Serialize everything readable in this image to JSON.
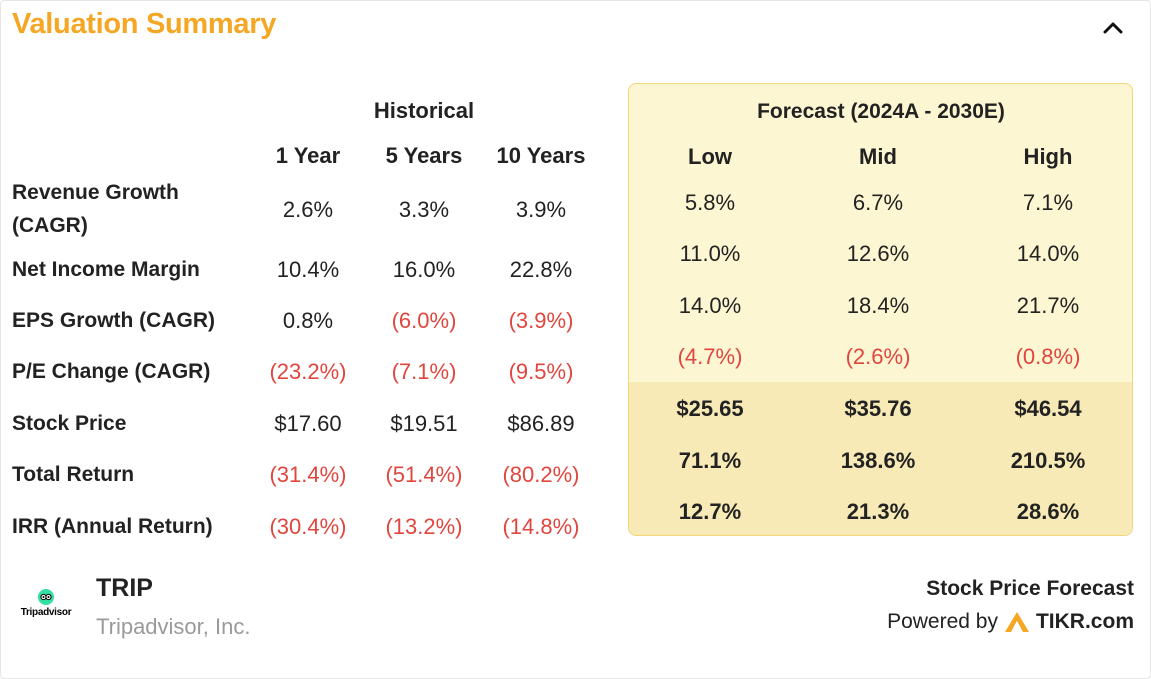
{
  "header": {
    "title": "Valuation Summary",
    "collapse_icon": "chevron-up-icon"
  },
  "historical": {
    "group_label": "Historical",
    "columns": [
      "1 Year",
      "5 Years",
      "10 Years"
    ]
  },
  "forecast": {
    "group_label": "Forecast (2024A - 2030E)",
    "columns": [
      "Low",
      "Mid",
      "High"
    ]
  },
  "rows": [
    {
      "label": "Revenue Growth (CAGR)",
      "label_line1": "Revenue Growth",
      "label_line2": "(CAGR)",
      "historical": [
        "2.6%",
        "3.3%",
        "3.9%"
      ],
      "forecast": [
        "5.8%",
        "6.7%",
        "7.1%"
      ]
    },
    {
      "label": "Net Income Margin",
      "historical": [
        "10.4%",
        "16.0%",
        "22.8%"
      ],
      "forecast": [
        "11.0%",
        "12.6%",
        "14.0%"
      ]
    },
    {
      "label": "EPS Growth (CAGR)",
      "historical": [
        "0.8%",
        "(6.0%)",
        "(3.9%)"
      ],
      "forecast": [
        "14.0%",
        "18.4%",
        "21.7%"
      ]
    },
    {
      "label": "P/E Change (CAGR)",
      "historical": [
        "(23.2%)",
        "(7.1%)",
        "(9.5%)"
      ],
      "forecast": [
        "(4.7%)",
        "(2.6%)",
        "(0.8%)"
      ]
    },
    {
      "label": "Stock Price",
      "historical": [
        "$17.60",
        "$19.51",
        "$86.89"
      ],
      "forecast": [
        "$25.65",
        "$35.76",
        "$46.54"
      ]
    },
    {
      "label": "Total Return",
      "historical": [
        "(31.4%)",
        "(51.4%)",
        "(80.2%)"
      ],
      "forecast": [
        "71.1%",
        "138.6%",
        "210.5%"
      ]
    },
    {
      "label": "IRR (Annual Return)",
      "historical": [
        "(30.4%)",
        "(13.2%)",
        "(14.8%)"
      ],
      "forecast": [
        "12.7%",
        "21.3%",
        "28.6%"
      ]
    }
  ],
  "company": {
    "logo_text": "Tripadvisor",
    "ticker": "TRIP",
    "name": "Tripadvisor, Inc."
  },
  "footer": {
    "title": "Stock Price Forecast",
    "powered_by": "Powered by",
    "brand": "TIKR.com",
    "brand_icon": "tikr-logo-icon"
  },
  "colors": {
    "title": "#f5a623",
    "negative": "#e0463e",
    "forecast_bg": "#fdf6d2",
    "forecast_highlight": "#f7eab6",
    "forecast_border": "#f2d67a"
  }
}
